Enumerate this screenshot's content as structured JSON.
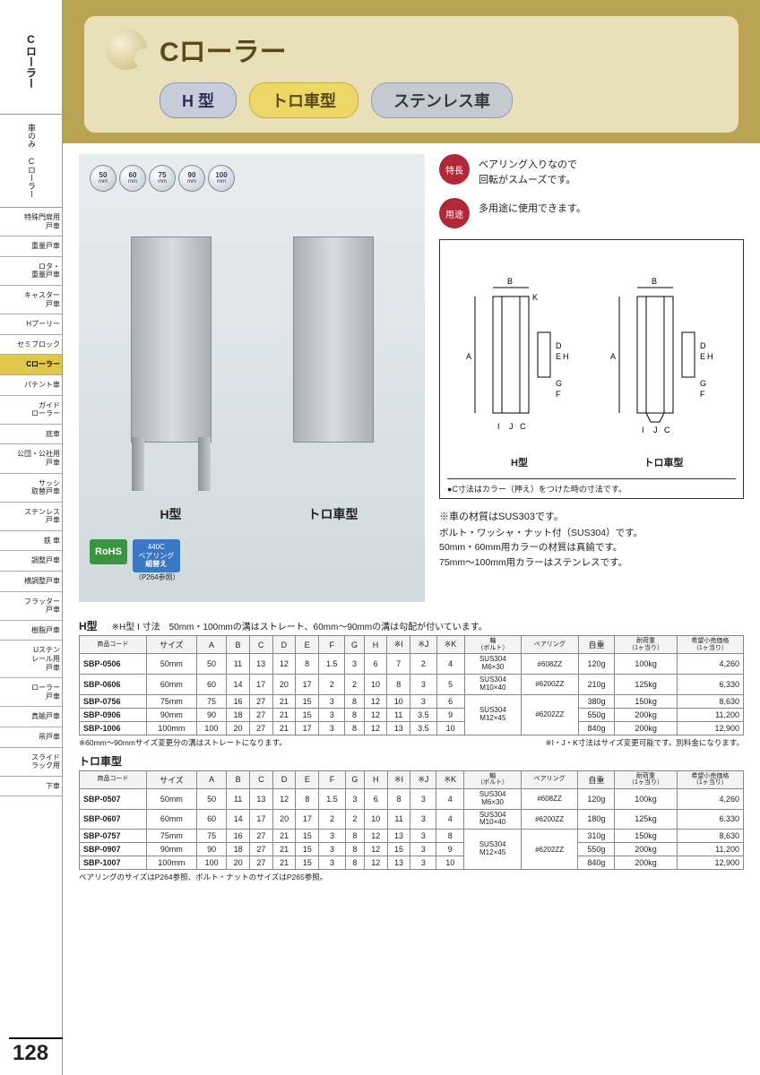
{
  "page_number": "128",
  "sidebar": {
    "block1": "Cローラー",
    "block2": "車のみ Cローラー",
    "nav": [
      {
        "label": "特殊門扉用\n戸車",
        "active": false
      },
      {
        "label": "重量戸車",
        "active": false
      },
      {
        "label": "ロタ・\n重量戸車",
        "active": false
      },
      {
        "label": "キャスター\n戸車",
        "active": false
      },
      {
        "label": "Hプーリー",
        "active": false
      },
      {
        "label": "セミブロック",
        "active": false
      },
      {
        "label": "Cローラー",
        "active": true
      },
      {
        "label": "パテント車",
        "active": false
      },
      {
        "label": "ガイド\nローラー",
        "active": false
      },
      {
        "label": "底車",
        "active": false
      },
      {
        "label": "公団・公社用\n戸車",
        "active": false
      },
      {
        "label": "サッシ\n取替戸車",
        "active": false
      },
      {
        "label": "ステンレス\n戸車",
        "active": false
      },
      {
        "label": "鉄 車",
        "active": false
      },
      {
        "label": "調整戸車",
        "active": false
      },
      {
        "label": "横調整戸車",
        "active": false
      },
      {
        "label": "フラッター\n戸車",
        "active": false
      },
      {
        "label": "樹脂戸車",
        "active": false
      },
      {
        "label": "Uステン\nレール用\n戸車",
        "active": false
      },
      {
        "label": "ローラー\n戸車",
        "active": false
      },
      {
        "label": "真鍮戸車",
        "active": false
      },
      {
        "label": "吊戸車",
        "active": false
      },
      {
        "label": "スライド\nラック用",
        "active": false
      },
      {
        "label": "下車",
        "active": false
      }
    ]
  },
  "header": {
    "title": "Cローラー",
    "pills": [
      {
        "label": "H 型",
        "class": "gray"
      },
      {
        "label": "トロ車型",
        "class": "yellow"
      },
      {
        "label": "ステンレス車",
        "class": "steel"
      }
    ]
  },
  "size_bubbles": [
    "50",
    "60",
    "75",
    "90",
    "100"
  ],
  "size_unit": "mm",
  "product_labels": {
    "h": "H型",
    "toro": "トロ車型"
  },
  "badges": {
    "rohs": "RoHS",
    "b440_l1": "440C",
    "b440_l2": "ベアリング",
    "b440_l3": "組替え",
    "ref": "（P264参照）"
  },
  "features": [
    {
      "badge": "特長",
      "text": "ベアリング入りなので\n回転がスムーズです。"
    },
    {
      "badge": "用途",
      "text": "多用途に使用できます。"
    }
  ],
  "diagram": {
    "label_h": "H型",
    "label_toro": "トロ車型",
    "dims": [
      "A",
      "B",
      "C",
      "D",
      "E",
      "F",
      "G",
      "H",
      "I",
      "J",
      "K"
    ],
    "note": "●C寸法はカラー（押え）をつけた時の寸法です。"
  },
  "material_notes": {
    "lead": "※車の材質はSUS303です。",
    "lines": [
      "ボルト・ワッシャ・ナット付（SUS304）です。",
      "50mm・60mm用カラーの材質は真鍮です。",
      "75mm〜100mm用カラーはステンレスです。"
    ]
  },
  "tables": {
    "columns": [
      "商品コード",
      "サイズ",
      "A",
      "B",
      "C",
      "D",
      "E",
      "F",
      "G",
      "H",
      "※I",
      "※J",
      "※K",
      "軸\n（ボルト）",
      "ベアリング",
      "自重",
      "耐荷重\n（1ヶ当り）",
      "希望小売価格\n（1ヶ当り）"
    ],
    "h": {
      "title": "H型",
      "subnote": "※H型 I 寸法　50mm・100mmの溝はストレート、60mm〜90mmの溝は勾配が付いています。",
      "rows": [
        {
          "code": "SBP-0506",
          "size": "50mm",
          "A": "50",
          "B": "11",
          "C": "13",
          "D": "12",
          "E": "8",
          "F": "1.5",
          "G": "3",
          "H": "6",
          "I": "7",
          "J": "2",
          "K": "4",
          "axis": "SUS304\nM6×30",
          "bearing": "#608ZZ",
          "weight": "120g",
          "load": "100kg",
          "price": "4,260"
        },
        {
          "code": "SBP-0606",
          "size": "60mm",
          "A": "60",
          "B": "14",
          "C": "17",
          "D": "20",
          "E": "17",
          "F": "2",
          "G": "2",
          "H": "10",
          "I": "8",
          "J": "3",
          "K": "5",
          "axis": "SUS304\nM10×40",
          "bearing": "#6200ZZ",
          "weight": "210g",
          "load": "125kg",
          "price": "6,330"
        },
        {
          "code": "SBP-0756",
          "size": "75mm",
          "A": "75",
          "B": "16",
          "C": "27",
          "D": "21",
          "E": "15",
          "F": "3",
          "G": "8",
          "H": "12",
          "I": "10",
          "J": "3",
          "K": "6",
          "axis": "",
          "bearing": "",
          "weight": "380g",
          "load": "150kg",
          "price": "8,630"
        },
        {
          "code": "SBP-0906",
          "size": "90mm",
          "A": "90",
          "B": "18",
          "C": "27",
          "D": "21",
          "E": "15",
          "F": "3",
          "G": "8",
          "H": "12",
          "I": "11",
          "J": "3.5",
          "K": "9",
          "axis": "SUS304\nM12×45",
          "bearing": "#6202ZZ",
          "weight": "550g",
          "load": "200kg",
          "price": "11,200"
        },
        {
          "code": "SBP-1006",
          "size": "100mm",
          "A": "100",
          "B": "20",
          "C": "27",
          "D": "21",
          "E": "17",
          "F": "3",
          "G": "8",
          "H": "12",
          "I": "13",
          "J": "3.5",
          "K": "10",
          "axis": "",
          "bearing": "",
          "weight": "840g",
          "load": "200kg",
          "price": "12,900"
        }
      ],
      "footnote_left": "※60mm〜90mmサイズ変更分の溝はストレートになります。",
      "footnote_right": "※I・J・K寸法はサイズ変更可能です。別料金になります。"
    },
    "toro": {
      "title": "トロ車型",
      "rows": [
        {
          "code": "SBP-0507",
          "size": "50mm",
          "A": "50",
          "B": "11",
          "C": "13",
          "D": "12",
          "E": "8",
          "F": "1.5",
          "G": "3",
          "H": "6",
          "I": "8",
          "J": "3",
          "K": "4",
          "axis": "SUS304\nM6×30",
          "bearing": "#608ZZ",
          "weight": "120g",
          "load": "100kg",
          "price": "4,260"
        },
        {
          "code": "SBP-0607",
          "size": "60mm",
          "A": "60",
          "B": "14",
          "C": "17",
          "D": "20",
          "E": "17",
          "F": "2",
          "G": "2",
          "H": "10",
          "I": "11",
          "J": "3",
          "K": "4",
          "axis": "SUS304\nM10×40",
          "bearing": "#6200ZZ",
          "weight": "180g",
          "load": "125kg",
          "price": "6,330"
        },
        {
          "code": "SBP-0757",
          "size": "75mm",
          "A": "75",
          "B": "16",
          "C": "27",
          "D": "21",
          "E": "15",
          "F": "3",
          "G": "8",
          "H": "12",
          "I": "13",
          "J": "3",
          "K": "8",
          "axis": "",
          "bearing": "",
          "weight": "310g",
          "load": "150kg",
          "price": "8,630"
        },
        {
          "code": "SBP-0907",
          "size": "90mm",
          "A": "90",
          "B": "18",
          "C": "27",
          "D": "21",
          "E": "15",
          "F": "3",
          "G": "8",
          "H": "12",
          "I": "15",
          "J": "3",
          "K": "9",
          "axis": "SUS304\nM12×45",
          "bearing": "#6202ZZ",
          "weight": "550g",
          "load": "200kg",
          "price": "11,200"
        },
        {
          "code": "SBP-1007",
          "size": "100mm",
          "A": "100",
          "B": "20",
          "C": "27",
          "D": "21",
          "E": "15",
          "F": "3",
          "G": "8",
          "H": "12",
          "I": "13",
          "J": "3",
          "K": "10",
          "axis": "",
          "bearing": "",
          "weight": "840g",
          "load": "200kg",
          "price": "12,900"
        }
      ],
      "footnote": "ベアリングのサイズはP264参照、ボルト・ナットのサイズはP265参照。"
    }
  }
}
